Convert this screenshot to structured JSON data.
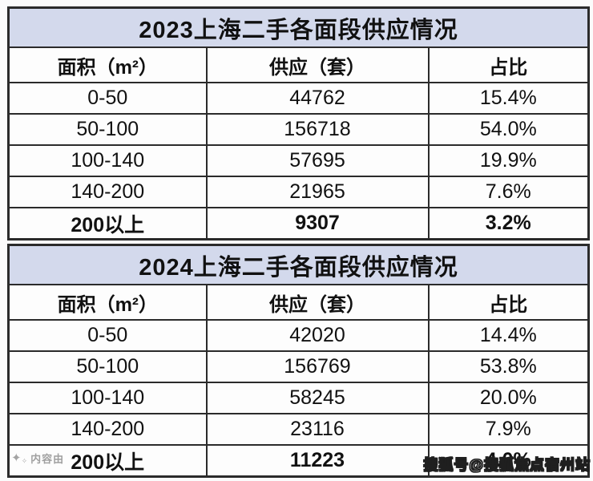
{
  "colors": {
    "title_bar_bg": "#d3d9ec",
    "cell_bg": "#fdfdfd",
    "border": "#2b2b2b",
    "text": "#111111",
    "watermark_left_text": "#969696",
    "watermark_right_fill": "#ffffff",
    "watermark_right_outline": "#1f1f1f"
  },
  "tables": [
    {
      "title": "2023上海二手各面段供应情况",
      "headers": [
        "面积（m²）",
        "供应（套）",
        "占比"
      ],
      "rows": [
        [
          "0-50",
          "44762",
          "15.4%"
        ],
        [
          "50-100",
          "156718",
          "54.0%"
        ],
        [
          "100-140",
          "57695",
          "19.9%"
        ],
        [
          "140-200",
          "21965",
          "7.6%"
        ],
        [
          "200以上",
          "9307",
          "3.2%"
        ]
      ]
    },
    {
      "title": "2024上海二手各面段供应情况",
      "headers": [
        "面积（m²）",
        "供应（套）",
        "占比"
      ],
      "rows": [
        [
          "0-50",
          "42020",
          "14.4%"
        ],
        [
          "50-100",
          "156769",
          "53.8%"
        ],
        [
          "100-140",
          "58245",
          "20.0%"
        ],
        [
          "140-200",
          "23116",
          "7.9%"
        ],
        [
          "200以上",
          "11223",
          "4.0%"
        ]
      ]
    }
  ],
  "watermarks": {
    "left_icon": "✦",
    "left_icon_small": "✧",
    "left_text": "内容由",
    "right_text": "搜狐号@搜狐焦点宿州站"
  },
  "chart_data": [
    {
      "type": "table",
      "title": "2023上海二手各面段供应情况",
      "columns": [
        "面积（m²）",
        "供应（套）",
        "占比"
      ],
      "rows": [
        {
          "area_segment": "0-50",
          "supply_units": 44762,
          "share_pct": 15.4
        },
        {
          "area_segment": "50-100",
          "supply_units": 156718,
          "share_pct": 54.0
        },
        {
          "area_segment": "100-140",
          "supply_units": 57695,
          "share_pct": 19.9
        },
        {
          "area_segment": "140-200",
          "supply_units": 21965,
          "share_pct": 7.6
        },
        {
          "area_segment": "200以上",
          "supply_units": 9307,
          "share_pct": 3.2
        }
      ]
    },
    {
      "type": "table",
      "title": "2024上海二手各面段供应情况",
      "columns": [
        "面积（m²）",
        "供应（套）",
        "占比"
      ],
      "rows": [
        {
          "area_segment": "0-50",
          "supply_units": 42020,
          "share_pct": 14.4
        },
        {
          "area_segment": "50-100",
          "supply_units": 156769,
          "share_pct": 53.8
        },
        {
          "area_segment": "100-140",
          "supply_units": 58245,
          "share_pct": 20.0
        },
        {
          "area_segment": "140-200",
          "supply_units": 23116,
          "share_pct": 7.9
        },
        {
          "area_segment": "200以上",
          "supply_units": 11223,
          "share_pct": 4.0
        }
      ]
    }
  ]
}
